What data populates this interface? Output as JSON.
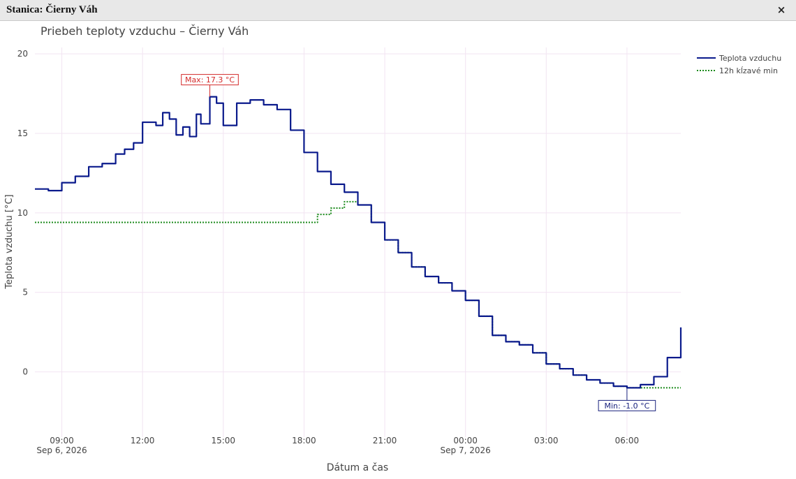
{
  "window": {
    "title": "Stanica: Čierny Váh",
    "close_glyph": "×"
  },
  "chart_data": {
    "type": "line",
    "title": "Priebeh teploty vzduchu – Čierny Váh",
    "xlabel": "Dátum a čas",
    "ylabel": "Teplota vzduchu [°C]",
    "ylim": [
      -4.1,
      20.4
    ],
    "y_ticks": [
      0,
      5,
      10,
      15,
      20
    ],
    "xlim": [
      "2026-09-06 08:00",
      "2026-09-07 08:00"
    ],
    "x_ticks": [
      {
        "x": "2026-09-06 09:00",
        "label": "09:00",
        "sublabel": "Sep 6, 2026"
      },
      {
        "x": "2026-09-06 12:00",
        "label": "12:00",
        "sublabel": ""
      },
      {
        "x": "2026-09-06 15:00",
        "label": "15:00",
        "sublabel": ""
      },
      {
        "x": "2026-09-06 18:00",
        "label": "18:00",
        "sublabel": ""
      },
      {
        "x": "2026-09-06 21:00",
        "label": "21:00",
        "sublabel": ""
      },
      {
        "x": "2026-09-07 00:00",
        "label": "00:00",
        "sublabel": "Sep 7, 2026"
      },
      {
        "x": "2026-09-07 03:00",
        "label": "03:00",
        "sublabel": ""
      },
      {
        "x": "2026-09-07 06:00",
        "label": "06:00",
        "sublabel": ""
      }
    ],
    "grid": true,
    "legend_position": "top-right",
    "series": [
      {
        "name": "Teplota vzduchu",
        "color": "#0a1a8c",
        "style": "solid",
        "x": [
          "2026-09-06 08:00",
          "2026-09-06 08:30",
          "2026-09-06 09:00",
          "2026-09-06 09:30",
          "2026-09-06 10:00",
          "2026-09-06 10:30",
          "2026-09-06 11:00",
          "2026-09-06 11:20",
          "2026-09-06 11:40",
          "2026-09-06 12:00",
          "2026-09-06 12:30",
          "2026-09-06 12:45",
          "2026-09-06 13:00",
          "2026-09-06 13:15",
          "2026-09-06 13:30",
          "2026-09-06 13:45",
          "2026-09-06 14:00",
          "2026-09-06 14:10",
          "2026-09-06 14:30",
          "2026-09-06 14:45",
          "2026-09-06 15:00",
          "2026-09-06 15:30",
          "2026-09-06 16:00",
          "2026-09-06 16:30",
          "2026-09-06 17:00",
          "2026-09-06 17:30",
          "2026-09-06 18:00",
          "2026-09-06 18:30",
          "2026-09-06 19:00",
          "2026-09-06 19:30",
          "2026-09-06 20:00",
          "2026-09-06 20:30",
          "2026-09-06 21:00",
          "2026-09-06 21:30",
          "2026-09-06 22:00",
          "2026-09-06 22:30",
          "2026-09-06 23:00",
          "2026-09-06 23:30",
          "2026-09-07 00:00",
          "2026-09-07 00:30",
          "2026-09-07 01:00",
          "2026-09-07 01:30",
          "2026-09-07 02:00",
          "2026-09-07 02:30",
          "2026-09-07 03:00",
          "2026-09-07 03:30",
          "2026-09-07 04:00",
          "2026-09-07 04:30",
          "2026-09-07 05:00",
          "2026-09-07 05:30",
          "2026-09-07 06:00",
          "2026-09-07 06:30",
          "2026-09-07 07:00",
          "2026-09-07 07:30",
          "2026-09-07 08:00"
        ],
        "values": [
          11.5,
          11.4,
          11.9,
          12.3,
          12.9,
          13.1,
          13.7,
          14.0,
          14.4,
          15.7,
          15.5,
          16.3,
          15.9,
          14.9,
          15.4,
          14.8,
          16.2,
          15.6,
          17.3,
          16.9,
          15.5,
          16.9,
          17.1,
          16.8,
          16.5,
          15.2,
          13.8,
          12.6,
          11.8,
          11.3,
          10.5,
          9.4,
          8.3,
          7.5,
          6.6,
          6.0,
          5.6,
          5.1,
          4.5,
          3.5,
          2.3,
          1.9,
          1.7,
          1.2,
          0.5,
          0.2,
          -0.2,
          -0.5,
          -0.7,
          -0.9,
          -1.0,
          -0.8,
          -0.3,
          0.9,
          2.8
        ]
      },
      {
        "name": "12h kĺzavé min",
        "color": "#1a8a1a",
        "style": "dotted",
        "x": [
          "2026-09-06 08:00",
          "2026-09-06 18:00",
          "2026-09-06 18:30",
          "2026-09-06 19:00",
          "2026-09-06 19:30",
          "2026-09-06 20:00",
          "2026-09-06 20:30",
          "2026-09-06 21:00",
          "2026-09-06 21:30",
          "2026-09-06 22:00",
          "2026-09-06 22:30",
          "2026-09-06 23:00",
          "2026-09-06 23:30",
          "2026-09-07 00:00",
          "2026-09-07 00:30",
          "2026-09-07 01:00",
          "2026-09-07 01:30",
          "2026-09-07 02:00",
          "2026-09-07 02:30",
          "2026-09-07 03:00",
          "2026-09-07 03:30",
          "2026-09-07 04:00",
          "2026-09-07 04:30",
          "2026-09-07 05:00",
          "2026-09-07 05:30",
          "2026-09-07 06:00",
          "2026-09-07 08:00"
        ],
        "values": [
          9.4,
          9.4,
          9.9,
          10.3,
          10.7,
          10.5,
          9.4,
          8.3,
          7.5,
          6.6,
          6.0,
          5.6,
          5.1,
          4.5,
          3.5,
          2.3,
          1.9,
          1.7,
          1.2,
          0.5,
          0.2,
          -0.2,
          -0.5,
          -0.7,
          -0.9,
          -1.0,
          -1.0
        ]
      }
    ],
    "annotations": [
      {
        "text": "Max: 17.3 °C",
        "x": "2026-09-06 14:30",
        "y": 17.3,
        "color": "#d42a2a"
      },
      {
        "text": "Min: -1.0 °C",
        "x": "2026-09-07 06:00",
        "y": -1.0,
        "color": "#1a237e"
      }
    ]
  }
}
